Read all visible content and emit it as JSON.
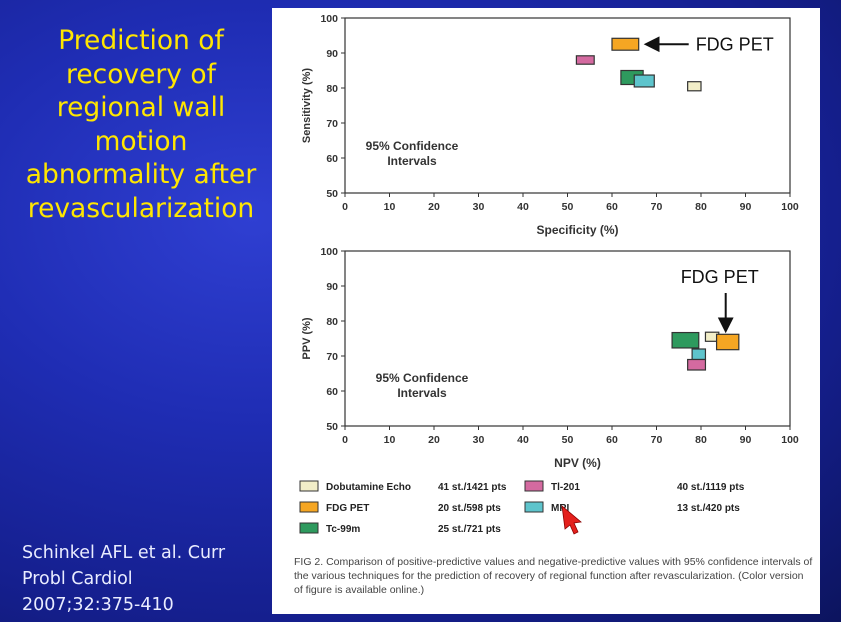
{
  "slide": {
    "title_lines": [
      "Prediction of",
      "recovery of",
      "regional wall",
      "motion",
      "abnormality after",
      "revascularization"
    ],
    "citation_lines": [
      "Schinkel AFL et al. Curr",
      "Probl Cardiol",
      "2007;32:375-410"
    ],
    "title_color": "#ffe600"
  },
  "figure": {
    "caption": "FIG 2. Comparison of positive-predictive values and negative-predictive values with 95% confidence intervals of the various techniques for the prediction of recovery of regional function after revascularization. (Color version of figure is available online.)"
  },
  "legend": [
    {
      "name": "Dobutamine Echo",
      "count": "41 st./1421 pts",
      "color": "#f2eec8"
    },
    {
      "name": "FDG PET",
      "count": "20 st./598 pts",
      "color": "#f5a623"
    },
    {
      "name": "Tc-99m",
      "count": "25 st./721 pts",
      "color": "#2e9a5e"
    },
    {
      "name": "Tl-201",
      "count": "40 st./1119 pts",
      "color": "#d46aa0"
    },
    {
      "name": "MRI",
      "count": "13 st./420 pts",
      "color": "#5ec4cc"
    }
  ],
  "chart_data": [
    {
      "type": "scatter",
      "xlabel": "Specificity (%)",
      "ylabel": "Sensitivity (%)",
      "xlim": [
        0,
        100
      ],
      "ylim": [
        50,
        100
      ],
      "x_ticks": [
        0,
        10,
        20,
        30,
        40,
        50,
        60,
        70,
        80,
        90,
        100
      ],
      "y_ticks": [
        50,
        60,
        70,
        80,
        90,
        100
      ],
      "annotation": "95% Confidence Intervals",
      "arrow_label": "FDG PET",
      "series": [
        {
          "name": "Tl-201",
          "x": [
            54,
            52,
            56
          ],
          "y": [
            88,
            86.8,
            89.2
          ],
          "color": "#d46aa0"
        },
        {
          "name": "FDG PET",
          "x": [
            63,
            60,
            66
          ],
          "y": [
            92.5,
            90.8,
            94.2
          ],
          "color": "#f5a623"
        },
        {
          "name": "Tc-99m",
          "x": [
            64.5,
            62,
            67
          ],
          "y": [
            83,
            81,
            85
          ],
          "color": "#2e9a5e"
        },
        {
          "name": "MRI",
          "x": [
            67,
            65,
            69.5
          ],
          "y": [
            82,
            80.3,
            83.7
          ],
          "color": "#5ec4cc"
        },
        {
          "name": "Dobutamine Echo",
          "x": [
            78.5,
            77,
            80
          ],
          "y": [
            80.5,
            79.2,
            81.8
          ],
          "color": "#f2eec8"
        }
      ]
    },
    {
      "type": "scatter",
      "xlabel": "NPV (%)",
      "ylabel": "PPV (%)",
      "xlim": [
        0,
        100
      ],
      "ylim": [
        50,
        100
      ],
      "x_ticks": [
        0,
        10,
        20,
        30,
        40,
        50,
        60,
        70,
        80,
        90,
        100
      ],
      "y_ticks": [
        50,
        60,
        70,
        80,
        90,
        100
      ],
      "annotation": "95% Confidence Intervals",
      "arrow_label": "FDG PET",
      "series": [
        {
          "name": "Tc-99m",
          "x": [
            76.5,
            73.5,
            79.5
          ],
          "y": [
            74.5,
            72.3,
            76.7
          ],
          "color": "#2e9a5e"
        },
        {
          "name": "Dobutamine Echo",
          "x": [
            82.5,
            81,
            84
          ],
          "y": [
            75.5,
            74.2,
            76.8
          ],
          "color": "#f2eec8"
        },
        {
          "name": "FDG PET",
          "x": [
            86,
            83.5,
            88.5
          ],
          "y": [
            74,
            71.8,
            76.2
          ],
          "color": "#f5a623"
        },
        {
          "name": "MRI",
          "x": [
            79.5,
            78,
            81
          ],
          "y": [
            70.5,
            69,
            72
          ],
          "color": "#5ec4cc"
        },
        {
          "name": "Tl-201",
          "x": [
            79,
            77,
            81
          ],
          "y": [
            67.5,
            66,
            69
          ],
          "color": "#d46aa0"
        }
      ]
    }
  ]
}
